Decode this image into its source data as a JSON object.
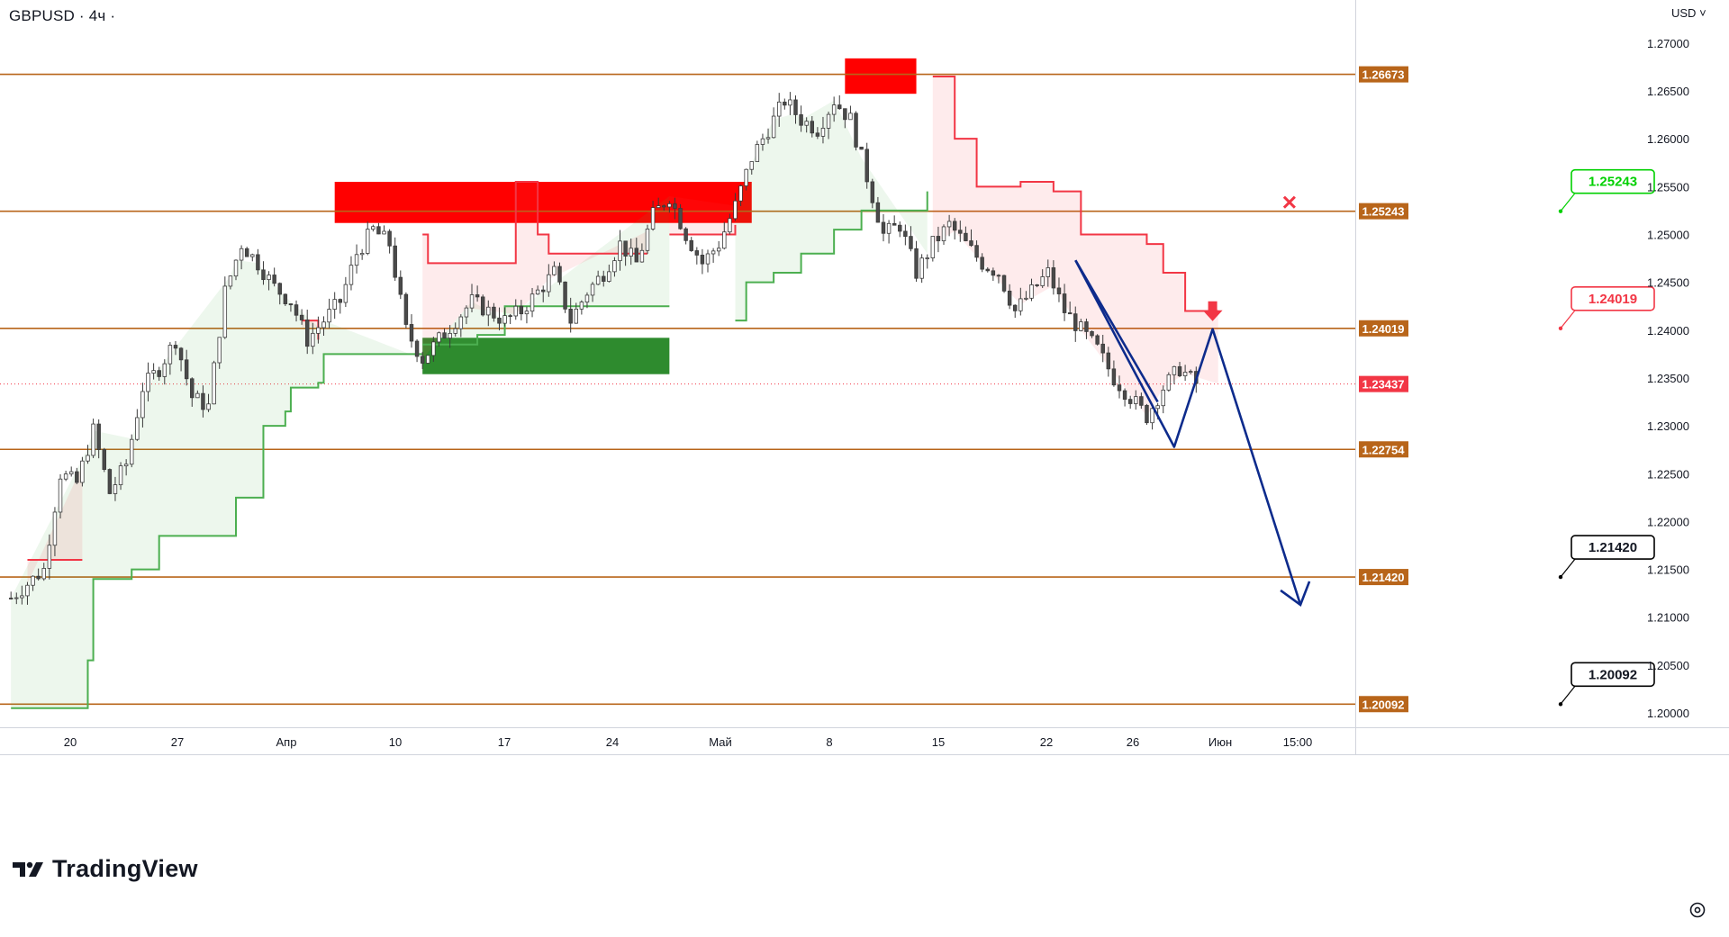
{
  "header": {
    "symbol": "GBPUSD",
    "interval": "4ч",
    "title": "GBPUSD · 4ч ·",
    "currency": "USD"
  },
  "logo": {
    "text": "TradingView"
  },
  "colors": {
    "level_line": "#b8651a",
    "bull_candle": "#26a69a",
    "bear_candle": "#ef5350",
    "candle_body": "#4a4a4a",
    "supertrend_up": "#4caf50",
    "supertrend_down": "#f23645",
    "zone_red": "#ff0000",
    "zone_green": "#2e8b2e",
    "projection": "#0d2b8c",
    "price_tag": "#f23645"
  },
  "chart_data": {
    "type": "candlestick",
    "title": "GBPUSD · 4ч",
    "ylim": [
      1.1985,
      1.2745
    ],
    "y_ticks": [
      "1.27000",
      "1.26500",
      "1.26000",
      "1.25500",
      "1.25000",
      "1.24500",
      "1.24000",
      "1.23500",
      "1.23000",
      "1.22500",
      "1.22000",
      "1.21500",
      "1.21000",
      "1.20500",
      "1.20000"
    ],
    "x_ticks": [
      "20",
      "27",
      "Апр",
      "10",
      "17",
      "24",
      "Май",
      "8",
      "15",
      "22",
      "26",
      "Июн",
      "15:00"
    ],
    "levels": [
      1.26673,
      1.25243,
      1.24019,
      1.22754,
      1.2142,
      1.20092
    ],
    "last_price": 1.23437,
    "price_path": [
      [
        0,
        1.212
      ],
      [
        3,
        1.2135
      ],
      [
        6,
        1.215
      ],
      [
        9,
        1.225
      ],
      [
        12,
        1.224
      ],
      [
        15,
        1.2295
      ],
      [
        18,
        1.223
      ],
      [
        21,
        1.226
      ],
      [
        24,
        1.234
      ],
      [
        27,
        1.236
      ],
      [
        30,
        1.239
      ],
      [
        33,
        1.233
      ],
      [
        36,
        1.232
      ],
      [
        39,
        1.244
      ],
      [
        42,
        1.249
      ],
      [
        45,
        1.247
      ],
      [
        48,
        1.2445
      ],
      [
        51,
        1.243
      ],
      [
        54,
        1.239
      ],
      [
        57,
        1.241
      ],
      [
        60,
        1.243
      ],
      [
        63,
        1.248
      ],
      [
        66,
        1.2505
      ],
      [
        69,
        1.249
      ],
      [
        72,
        1.24
      ],
      [
        75,
        1.237
      ],
      [
        78,
        1.239
      ],
      [
        81,
        1.241
      ],
      [
        84,
        1.243
      ],
      [
        87,
        1.242
      ],
      [
        90,
        1.241
      ],
      [
        93,
        1.242
      ],
      [
        96,
        1.244
      ],
      [
        99,
        1.246
      ],
      [
        102,
        1.241
      ],
      [
        105,
        1.244
      ],
      [
        108,
        1.246
      ],
      [
        111,
        1.249
      ],
      [
        114,
        1.247
      ],
      [
        117,
        1.252
      ],
      [
        120,
        1.254
      ],
      [
        123,
        1.25
      ],
      [
        126,
        1.247
      ],
      [
        129,
        1.249
      ],
      [
        132,
        1.253
      ],
      [
        135,
        1.258
      ],
      [
        138,
        1.261
      ],
      [
        141,
        1.264
      ],
      [
        144,
        1.262
      ],
      [
        147,
        1.261
      ],
      [
        150,
        1.264
      ],
      [
        153,
        1.262
      ],
      [
        156,
        1.256
      ],
      [
        159,
        1.25
      ],
      [
        162,
        1.251
      ],
      [
        165,
        1.246
      ],
      [
        168,
        1.249
      ],
      [
        171,
        1.251
      ],
      [
        174,
        1.249
      ],
      [
        177,
        1.247
      ],
      [
        180,
        1.246
      ],
      [
        183,
        1.242
      ],
      [
        186,
        1.244
      ],
      [
        189,
        1.246
      ],
      [
        192,
        1.242
      ],
      [
        195,
        1.24
      ],
      [
        198,
        1.238
      ],
      [
        201,
        1.235
      ],
      [
        204,
        1.233
      ],
      [
        207,
        1.231
      ],
      [
        210,
        1.234
      ],
      [
        213,
        1.236
      ],
      [
        216,
        1.2344
      ]
    ],
    "supertrend_up_segments": [
      [
        [
          0,
          1.2005
        ],
        [
          14,
          1.2055
        ],
        [
          15,
          1.214
        ],
        [
          22,
          1.215
        ],
        [
          26,
          1.215
        ],
        [
          27,
          1.2185
        ],
        [
          40,
          1.2185
        ],
        [
          41,
          1.2225
        ],
        [
          45,
          1.2225
        ],
        [
          46,
          1.23
        ],
        [
          50,
          1.2315
        ],
        [
          51,
          1.234
        ],
        [
          56,
          1.2345
        ],
        [
          57,
          1.2375
        ],
        [
          75,
          1.2375
        ]
      ],
      [
        [
          75,
          1.2385
        ],
        [
          84,
          1.2385
        ],
        [
          85,
          1.2395
        ],
        [
          90,
          1.2425
        ],
        [
          120,
          1.2425
        ]
      ],
      [
        [
          132,
          1.241
        ],
        [
          134,
          1.245
        ],
        [
          139,
          1.246
        ],
        [
          143,
          1.246
        ],
        [
          144,
          1.248
        ],
        [
          150,
          1.2505
        ],
        [
          155,
          1.2525
        ],
        [
          167,
          1.2545
        ]
      ]
    ],
    "supertrend_down_segments": [
      [
        [
          3,
          1.216
        ],
        [
          13,
          1.216
        ]
      ],
      [
        [
          53,
          1.241
        ],
        [
          56,
          1.239
        ]
      ],
      [
        [
          75,
          1.25
        ],
        [
          76,
          1.247
        ],
        [
          83,
          1.247
        ],
        [
          92,
          1.2555
        ],
        [
          96,
          1.25
        ],
        [
          98,
          1.248
        ],
        [
          116,
          1.248
        ]
      ],
      [
        [
          120,
          1.25
        ],
        [
          132,
          1.251
        ]
      ],
      [
        [
          168,
          1.2665
        ],
        [
          172,
          1.26
        ],
        [
          176,
          1.255
        ],
        [
          184,
          1.2555
        ],
        [
          190,
          1.2545
        ],
        [
          195,
          1.25
        ],
        [
          207,
          1.249
        ],
        [
          210,
          1.246
        ],
        [
          214,
          1.242
        ],
        [
          220,
          1.242
        ]
      ]
    ],
    "supply_zones": [
      {
        "x": [
          59,
          135
        ],
        "y": [
          1.2512,
          1.2555
        ]
      },
      {
        "x": [
          152,
          165
        ],
        "y": [
          1.2647,
          1.2684
        ]
      }
    ],
    "demand_zones": [
      {
        "x": [
          75,
          120
        ],
        "y": [
          1.2354,
          1.2392
        ]
      }
    ],
    "projection_lines": [
      [
        [
          194,
          1.2473
        ],
        [
          212,
          1.2278
        ],
        [
          219,
          1.2401
        ],
        [
          235,
          1.2113
        ]
      ],
      [
        [
          194,
          1.2473
        ],
        [
          209,
          1.2325
        ]
      ]
    ],
    "annotations": [
      {
        "label": "1.25243",
        "color": "#00d000",
        "level": 1.25243
      },
      {
        "label": "1.24019",
        "color": "#f23645",
        "level": 1.24019
      },
      {
        "label": "1.21420",
        "color": "#000000",
        "level": 1.2142
      },
      {
        "label": "1.20092",
        "color": "#000000",
        "level": 1.20092
      }
    ]
  }
}
